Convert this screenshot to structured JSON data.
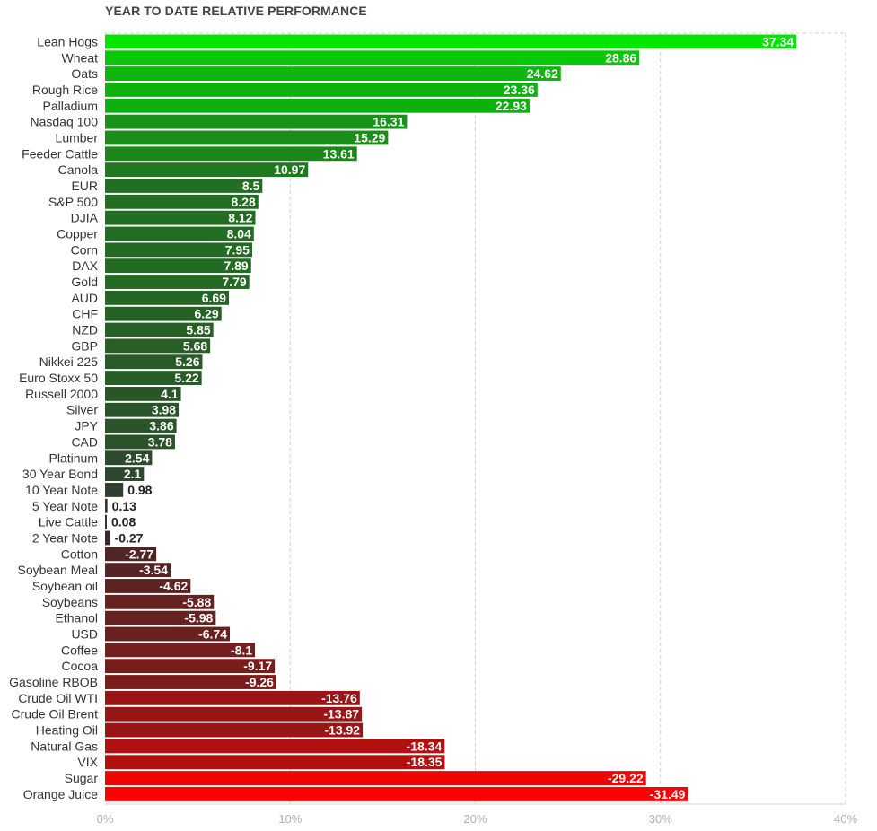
{
  "chart_data": {
    "type": "bar",
    "orientation": "horizontal",
    "title": "YEAR TO DATE RELATIVE PERFORMANCE",
    "xlabel": "",
    "ylabel": "",
    "xlim": [
      0,
      40
    ],
    "x_ticks": [
      "0%",
      "10%",
      "20%",
      "30%",
      "40%"
    ],
    "grid": true,
    "categories": [
      "Lean Hogs",
      "Wheat",
      "Oats",
      "Rough Rice",
      "Palladium",
      "Nasdaq 100",
      "Lumber",
      "Feeder Cattle",
      "Canola",
      "EUR",
      "S&P 500",
      "DJIA",
      "Copper",
      "Corn",
      "DAX",
      "Gold",
      "AUD",
      "CHF",
      "NZD",
      "GBP",
      "Nikkei 225",
      "Euro Stoxx 50",
      "Russell 2000",
      "Silver",
      "JPY",
      "CAD",
      "Platinum",
      "30 Year Bond",
      "10 Year Note",
      "5 Year Note",
      "Live Cattle",
      "2 Year Note",
      "Cotton",
      "Soybean Meal",
      "Soybean oil",
      "Soybeans",
      "Ethanol",
      "USD",
      "Coffee",
      "Cocoa",
      "Gasoline RBOB",
      "Crude Oil WTI",
      "Crude Oil Brent",
      "Heating Oil",
      "Natural Gas",
      "VIX",
      "Sugar",
      "Orange Juice"
    ],
    "values": [
      37.34,
      28.86,
      24.62,
      23.36,
      22.93,
      16.31,
      15.29,
      13.61,
      10.97,
      8.5,
      8.28,
      8.12,
      8.04,
      7.95,
      7.89,
      7.79,
      6.69,
      6.29,
      5.85,
      5.68,
      5.26,
      5.22,
      4.1,
      3.98,
      3.86,
      3.78,
      2.54,
      2.1,
      0.98,
      0.13,
      0.08,
      -0.27,
      -2.77,
      -3.54,
      -4.62,
      -5.88,
      -5.98,
      -6.74,
      -8.1,
      -9.17,
      -9.26,
      -13.76,
      -13.87,
      -13.92,
      -18.34,
      -18.35,
      -29.22,
      -31.49
    ],
    "value_labels": [
      "37.34",
      "28.86",
      "24.62",
      "23.36",
      "22.93",
      "16.31",
      "15.29",
      "13.61",
      "10.97",
      "8.5",
      "8.28",
      "8.12",
      "8.04",
      "7.95",
      "7.89",
      "7.79",
      "6.69",
      "6.29",
      "5.85",
      "5.68",
      "5.26",
      "5.22",
      "4.1",
      "3.98",
      "3.86",
      "3.78",
      "2.54",
      "2.1",
      "0.98",
      "0.13",
      "0.08",
      "-0.27",
      "-2.77",
      "-3.54",
      "-4.62",
      "-5.88",
      "-5.98",
      "-6.74",
      "-8.1",
      "-9.17",
      "-9.26",
      "-13.76",
      "-13.87",
      "-13.92",
      "-18.34",
      "-18.35",
      "-29.22",
      "-31.49"
    ],
    "colors": {
      "positive_max": "#00e600",
      "positive_min": "#333333",
      "negative_min": "#3a2a2a",
      "negative_max": "#ff0000",
      "grid": "#d0d0d0",
      "tick_text": "#b0b0b0"
    }
  }
}
